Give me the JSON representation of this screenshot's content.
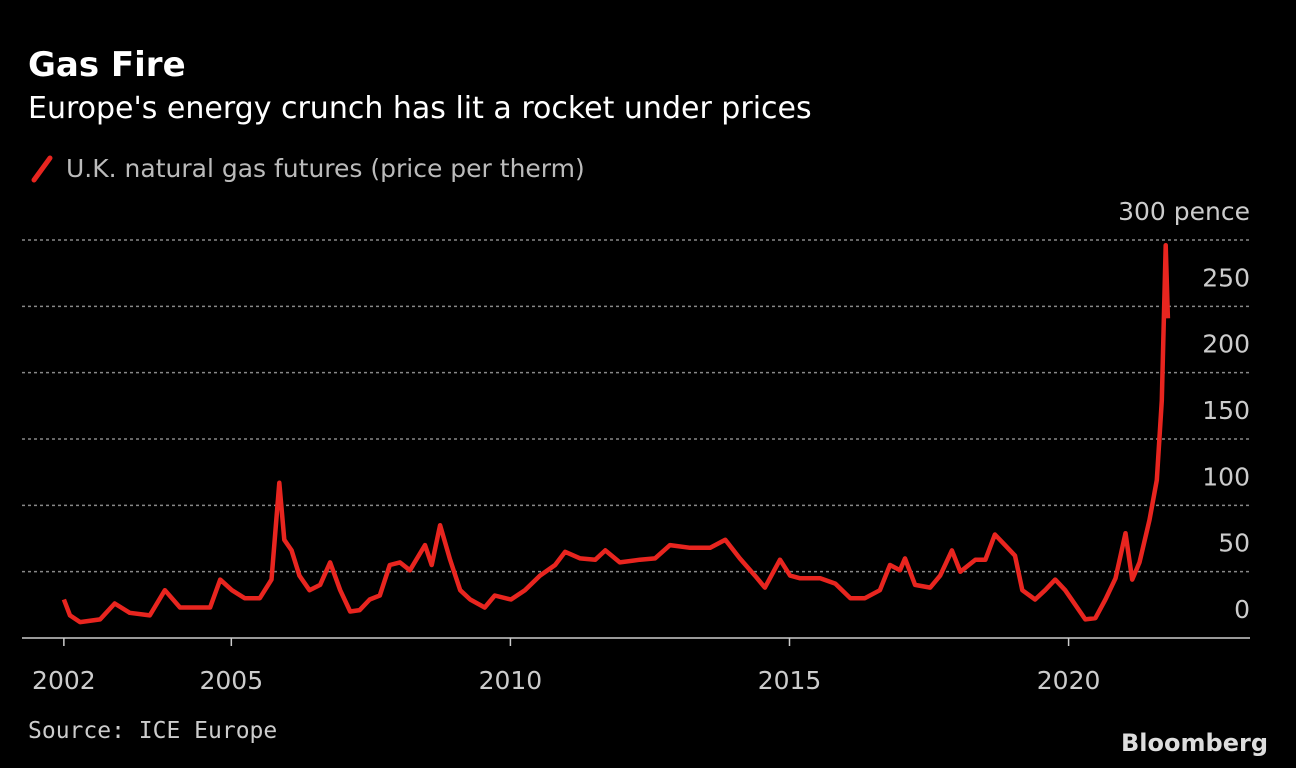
{
  "chart_data": {
    "type": "line",
    "title": "Gas Fire",
    "subtitle": "Europe's energy crunch has lit a rocket under prices",
    "source": "Source: ICE Europe",
    "brand": "Bloomberg",
    "xlim": [
      2001.25,
      2023.25
    ],
    "xticks": [
      2002,
      2005,
      2010,
      2015,
      2020
    ],
    "ylim": [
      0,
      300
    ],
    "yticks": [
      0,
      50,
      100,
      150,
      200,
      250,
      {
        "value": 300,
        "label": "300 pence"
      }
    ],
    "grid": true,
    "series": [
      {
        "name": "U.K. natural gas futures (price per therm)",
        "color": "#e8251f",
        "x": [
          2002.0,
          2002.11,
          2002.29,
          2002.65,
          2002.91,
          2003.18,
          2003.54,
          2003.81,
          2004.08,
          2004.44,
          2004.62,
          2004.8,
          2005.01,
          2005.24,
          2005.51,
          2005.72,
          2005.86,
          2005.95,
          2006.08,
          2006.22,
          2006.4,
          2006.59,
          2006.77,
          2006.95,
          2007.13,
          2007.3,
          2007.48,
          2007.66,
          2007.84,
          2008.02,
          2008.2,
          2008.47,
          2008.59,
          2008.74,
          2008.92,
          2009.1,
          2009.28,
          2009.54,
          2009.72,
          2010.01,
          2010.26,
          2010.53,
          2010.8,
          2010.98,
          2011.25,
          2011.52,
          2011.7,
          2011.96,
          2012.32,
          2012.59,
          2012.86,
          2013.22,
          2013.58,
          2013.85,
          2014.11,
          2014.38,
          2014.56,
          2014.83,
          2015.01,
          2015.19,
          2015.55,
          2015.82,
          2016.09,
          2016.35,
          2016.62,
          2016.8,
          2016.98,
          2017.07,
          2017.25,
          2017.52,
          2017.7,
          2017.91,
          2018.06,
          2018.33,
          2018.51,
          2018.68,
          2018.86,
          2019.04,
          2019.17,
          2019.4,
          2019.58,
          2019.76,
          2019.94,
          2020.12,
          2020.3,
          2020.48,
          2020.66,
          2020.84,
          2021.02,
          2021.14,
          2021.27,
          2021.45,
          2021.58,
          2021.67,
          2021.74,
          2021.78
        ],
        "values": [
          29,
          17,
          12,
          14,
          26,
          19,
          17,
          36,
          23,
          23,
          23,
          44,
          36,
          30,
          30,
          44,
          117,
          74,
          66,
          47,
          36,
          40,
          57,
          36,
          20,
          21,
          29,
          32,
          55,
          57,
          51,
          70,
          55,
          85,
          59,
          36,
          29,
          23,
          32,
          29,
          36,
          47,
          55,
          65,
          60,
          59,
          66,
          57,
          59,
          60,
          70,
          68,
          68,
          74,
          60,
          47,
          38,
          59,
          47,
          45,
          45,
          41,
          30,
          30,
          36,
          55,
          51,
          60,
          40,
          38,
          47,
          66,
          50,
          59,
          59,
          78,
          70,
          62,
          36,
          29,
          36,
          44,
          36,
          25,
          14,
          15,
          29,
          45,
          79,
          44,
          57,
          89,
          119,
          179,
          296,
          241
        ]
      }
    ]
  }
}
